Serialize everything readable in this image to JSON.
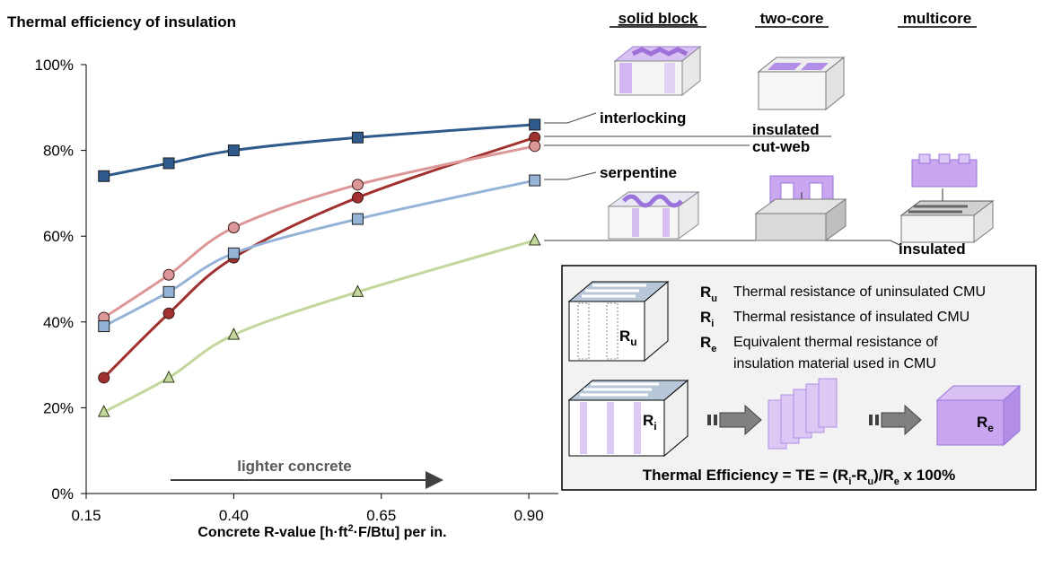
{
  "chart_data": {
    "type": "line",
    "title": "Thermal efficiency of insulation",
    "xlabel_main": "Concrete R-value [h·ft",
    "xlabel_sup": "2",
    "xlabel_rest": "·F/Btu] per in.",
    "xlim": [
      0.15,
      0.95
    ],
    "ylim": [
      0,
      100
    ],
    "x_ticks": [
      "0.15",
      "0.40",
      "0.65",
      "0.90"
    ],
    "x_tick_values": [
      0.15,
      0.4,
      0.65,
      0.9
    ],
    "y_ticks": [
      "0%",
      "20%",
      "40%",
      "60%",
      "80%",
      "100%"
    ],
    "y_tick_values": [
      0,
      20,
      40,
      60,
      80,
      100
    ],
    "x": [
      0.18,
      0.29,
      0.4,
      0.61,
      0.91
    ],
    "series": [
      {
        "name": "interlocking",
        "values": [
          74,
          77,
          80,
          83,
          86
        ],
        "color": "#2e5a8c",
        "marker": "square"
      },
      {
        "name": "insulated",
        "values": [
          27,
          42,
          55,
          69,
          83
        ],
        "color": "#a0312e",
        "marker": "circle"
      },
      {
        "name": "cut-web",
        "values": [
          41,
          51,
          62,
          72,
          81
        ],
        "color": "#dc9898",
        "marker": "circle"
      },
      {
        "name": "serpentine",
        "values": [
          39,
          47,
          56,
          64,
          73
        ],
        "color": "#95b3d7",
        "marker": "square"
      },
      {
        "name": "insulated",
        "values": [
          19,
          27,
          37,
          47,
          59
        ],
        "color": "#c3d69b",
        "marker": "triangle"
      }
    ],
    "arrow_label": "lighter concrete",
    "block_types": [
      "solid block",
      "two-core",
      "multicore"
    ]
  },
  "legend_box": {
    "defs": [
      {
        "sym": "R",
        "sub": "u",
        "text": "Thermal resistance of uninsulated CMU"
      },
      {
        "sym": "R",
        "sub": "i",
        "text": "Thermal resistance of insulated CMU"
      },
      {
        "sym": "R",
        "sub": "e",
        "text": "Equivalent thermal resistance of"
      }
    ],
    "def_continuation": "insulation material used in CMU",
    "fig_ru_sym": "R",
    "fig_ru_sub": "u",
    "fig_ri_sym": "R",
    "fig_ri_sub": "i",
    "fig_re_sym": "R",
    "fig_re_sub": "e",
    "formula_a": "Thermal Efficiency = TE = (R",
    "formula_sub_i": "i",
    "formula_dash": "-R",
    "formula_sub_u": "u",
    "formula_b": ")/R",
    "formula_sub_e": "e",
    "formula_c": " x 100%"
  },
  "colors": {
    "purple": "#b38ee6",
    "purple_light": "#dcc8f5",
    "panel_bg": "#f2f2f2",
    "slate": "#b7c7d8"
  }
}
